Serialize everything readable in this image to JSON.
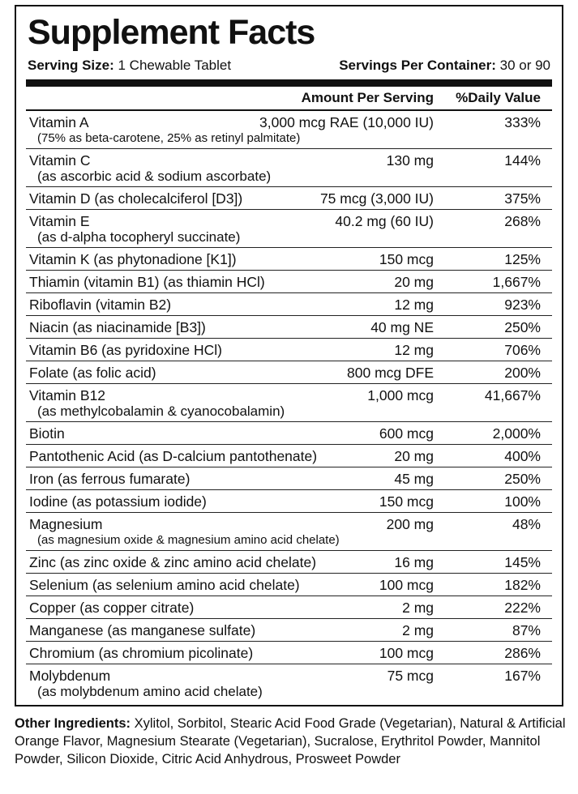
{
  "title": "Supplement Facts",
  "serving": {
    "size_label": "Serving Size:",
    "size": "1 Chewable Tablet",
    "per_container_label": "Servings Per Container:",
    "per_container": "30 or 90"
  },
  "header": {
    "amount": "Amount Per Serving",
    "daily_value": "%Daily Value"
  },
  "rows": [
    {
      "name": "Vitamin A",
      "amount": "3,000 mcg RAE (10,000 IU)",
      "daily_value": "333%",
      "detail": "(75% as beta-carotene, 25% as retinyl palmitate)"
    },
    {
      "name": "Vitamin C",
      "amount": "130 mg",
      "daily_value": "144%",
      "detail": "(as ascorbic acid & sodium ascorbate)"
    },
    {
      "name": "Vitamin D (as cholecalciferol [D3])",
      "amount": "75 mcg (3,000 IU)",
      "daily_value": "375%"
    },
    {
      "name": "Vitamin E",
      "amount": "40.2 mg (60 IU)",
      "daily_value": "268%",
      "detail": "(as d-alpha tocopheryl succinate)"
    },
    {
      "name": "Vitamin K (as phytonadione [K1])",
      "amount": "150 mcg",
      "daily_value": "125%"
    },
    {
      "name": "Thiamin (vitamin B1) (as thiamin HCl)",
      "amount": "20 mg",
      "daily_value": "1,667%"
    },
    {
      "name": "Riboflavin (vitamin B2)",
      "amount": "12 mg",
      "daily_value": "923%"
    },
    {
      "name": "Niacin (as niacinamide [B3])",
      "amount": "40 mg NE",
      "daily_value": "250%"
    },
    {
      "name": "Vitamin B6 (as pyridoxine HCl)",
      "amount": "12 mg",
      "daily_value": "706%"
    },
    {
      "name": "Folate (as folic acid)",
      "amount": "800 mcg DFE",
      "daily_value": "200%"
    },
    {
      "name": "Vitamin B12",
      "amount": "1,000 mcg",
      "daily_value": "41,667%",
      "detail": "(as methylcobalamin & cyanocobalamin)"
    },
    {
      "name": "Biotin",
      "amount": "600 mcg",
      "daily_value": "2,000%"
    },
    {
      "name": "Pantothenic Acid (as D-calcium pantothenate)",
      "amount": "20 mg",
      "daily_value": "400%"
    },
    {
      "name": "Iron (as ferrous fumarate)",
      "amount": "45 mg",
      "daily_value": "250%"
    },
    {
      "name": "Iodine (as potassium iodide)",
      "amount": "150 mcg",
      "daily_value": "100%"
    },
    {
      "name": "Magnesium",
      "amount": "200 mg",
      "daily_value": "48%",
      "detail": "(as magnesium oxide & magnesium amino acid chelate)"
    },
    {
      "name": "Zinc (as zinc oxide & zinc amino acid chelate)",
      "amount": "16 mg",
      "daily_value": "145%"
    },
    {
      "name": "Selenium (as selenium amino acid chelate)",
      "amount": "100 mcg",
      "daily_value": "182%"
    },
    {
      "name": "Copper (as copper citrate)",
      "amount": "2 mg",
      "daily_value": "222%"
    },
    {
      "name": "Manganese (as manganese sulfate)",
      "amount": "2 mg",
      "daily_value": "87%"
    },
    {
      "name": "Chromium (as chromium picolinate)",
      "amount": "100 mcg",
      "daily_value": "286%"
    },
    {
      "name": "Molybdenum",
      "amount": "75 mcg",
      "daily_value": "167%",
      "detail": "(as molybdenum amino acid chelate)"
    }
  ],
  "other_ingredients": {
    "label": "Other Ingredients:",
    "text": "Xylitol, Sorbitol, Stearic Acid Food Grade (Vegetarian), Natural & Artificial Orange Flavor, Magnesium Stearate (Vegetarian), Sucralose, Erythritol Powder, Mannitol Powder, Silicon Dioxide, Citric Acid Anhydrous, Prosweet Powder"
  }
}
